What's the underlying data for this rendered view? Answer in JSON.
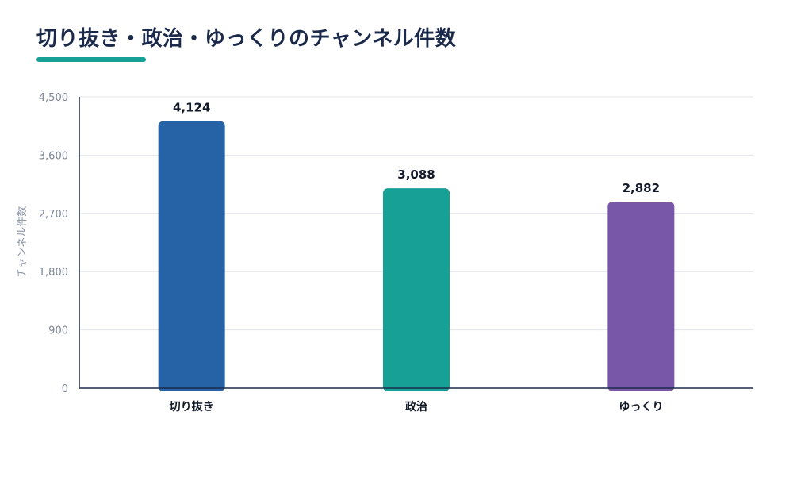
{
  "chart_data": {
    "type": "bar",
    "title": "切り抜き・政治・ゆっくりのチャンネル件数",
    "xlabel": "",
    "ylabel": "チャンネル件数",
    "categories": [
      "切り抜き",
      "政治",
      "ゆっくり"
    ],
    "values": [
      4124,
      3088,
      2882
    ],
    "value_labels": [
      "4,124",
      "3,088",
      "2,882"
    ],
    "bar_colors": [
      "#2563a6",
      "#17a096",
      "#7856a8"
    ],
    "ylim": [
      0,
      4500
    ],
    "yticks": [
      0,
      900,
      1800,
      2700,
      3600,
      4500
    ],
    "ytick_labels": [
      "0",
      "900",
      "1,800",
      "2,700",
      "3,600",
      "4,500"
    ],
    "grid": true,
    "legend": "none"
  },
  "colors": {
    "title": "#1b2a4a",
    "accent": "#17a096",
    "axis": "#1b2a4a",
    "grid": "#e1e4ea"
  }
}
